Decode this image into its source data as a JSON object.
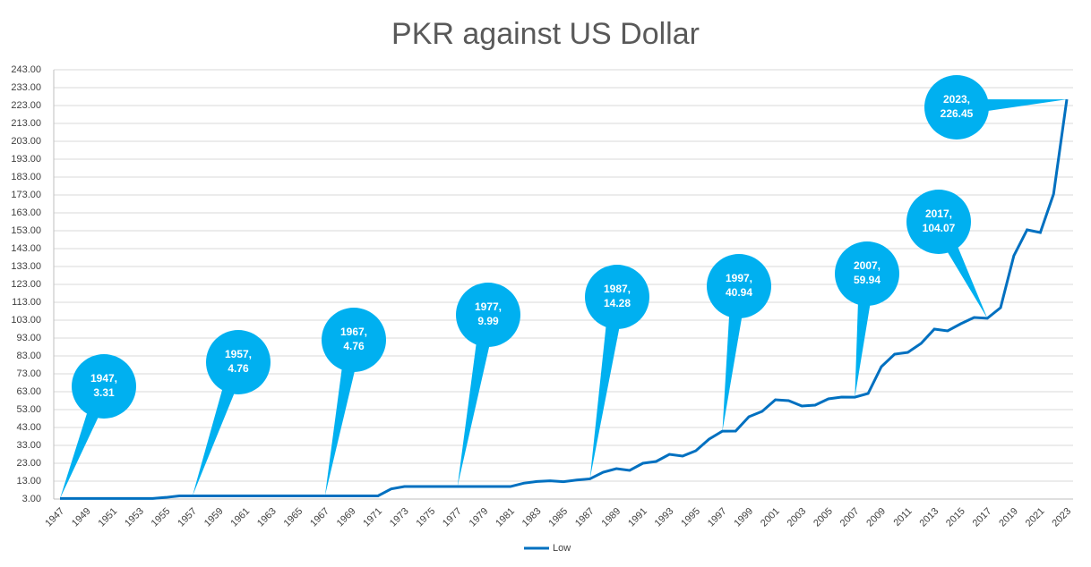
{
  "chart_data": {
    "type": "line",
    "title": "PKR against US Dollar",
    "categories": [
      "1947",
      null,
      "1949",
      null,
      "1951",
      null,
      "1953",
      null,
      "1955",
      null,
      "1957",
      null,
      "1959",
      null,
      "1961",
      null,
      "1963",
      null,
      "1965",
      null,
      "1967",
      null,
      "1969",
      null,
      "1971",
      null,
      "1973",
      null,
      "1975",
      null,
      "1977",
      null,
      "1979",
      null,
      "1981",
      null,
      "1983",
      null,
      "1985",
      null,
      "1987",
      null,
      "1989",
      null,
      "1991",
      null,
      "1993",
      null,
      "1995",
      null,
      "1997",
      null,
      "1999",
      null,
      "2001",
      null,
      "2003",
      null,
      "2005",
      null,
      "2007",
      null,
      "2009",
      null,
      "2011",
      null,
      "2013",
      null,
      "2015",
      null,
      "2017",
      null,
      "2019",
      null,
      "2021",
      null,
      "2023"
    ],
    "series": [
      {
        "name": "Low",
        "color": "#0070c0",
        "values": [
          3.31,
          3.31,
          3.31,
          3.31,
          3.31,
          3.31,
          3.31,
          3.31,
          3.91,
          4.76,
          4.76,
          4.76,
          4.76,
          4.76,
          4.76,
          4.76,
          4.76,
          4.76,
          4.76,
          4.76,
          4.76,
          4.76,
          4.76,
          4.76,
          4.76,
          8.68,
          9.99,
          9.99,
          9.99,
          9.99,
          9.99,
          9.99,
          9.99,
          9.99,
          9.99,
          11.85,
          12.8,
          13.2,
          12.7,
          13.6,
          14.28,
          18,
          20,
          19,
          23,
          24,
          28,
          27,
          30,
          36.5,
          40.94,
          41,
          49,
          52,
          58.5,
          58,
          55,
          55.5,
          59,
          60,
          59.94,
          62,
          77,
          84,
          85,
          90,
          98,
          97,
          101,
          104.5,
          104.07,
          110,
          139,
          153.5,
          152,
          173.5,
          226.45
        ],
        "value_labels": [
          "1947, 3.31",
          null,
          null,
          null,
          null,
          null,
          null,
          null,
          null,
          null,
          "1957, 4.76",
          null,
          null,
          null,
          null,
          null,
          null,
          null,
          null,
          null,
          "1967, 4.76",
          null,
          null,
          null,
          null,
          null,
          null,
          null,
          null,
          null,
          "1977, 9.99",
          null,
          null,
          null,
          null,
          null,
          null,
          null,
          null,
          null,
          "1987, 14.28",
          null,
          null,
          null,
          null,
          null,
          null,
          null,
          null,
          null,
          "1997, 40.94",
          null,
          null,
          null,
          null,
          null,
          null,
          null,
          null,
          null,
          "2007, 59.94",
          null,
          null,
          null,
          null,
          null,
          null,
          null,
          null,
          null,
          "2017, 104.07",
          null,
          null,
          null,
          null,
          null,
          "2023, 226.45"
        ],
        "label_color": "#00b0f0"
      }
    ],
    "ylim": [
      3,
      243
    ],
    "yticks": [
      {
        "value": 3,
        "label": "3.00"
      },
      {
        "value": 13,
        "label": "13.00"
      },
      {
        "value": 23,
        "label": "23.00"
      },
      {
        "value": 33,
        "label": "33.00"
      },
      {
        "value": 43,
        "label": "43.00"
      },
      {
        "value": 53,
        "label": "53.00"
      },
      {
        "value": 63,
        "label": "63.00"
      },
      {
        "value": 73,
        "label": "73.00"
      },
      {
        "value": 83,
        "label": "83.00"
      },
      {
        "value": 93,
        "label": "93.00"
      },
      {
        "value": 103,
        "label": "103.00"
      },
      {
        "value": 113,
        "label": "113.00"
      },
      {
        "value": 123,
        "label": "123.00"
      },
      {
        "value": 133,
        "label": "133.00"
      },
      {
        "value": 143,
        "label": "143.00"
      },
      {
        "value": 153,
        "label": "153.00"
      },
      {
        "value": 163,
        "label": "163.00"
      },
      {
        "value": 173,
        "label": "173.00"
      },
      {
        "value": 183,
        "label": "183.00"
      },
      {
        "value": 193,
        "label": "193.00"
      },
      {
        "value": 203,
        "label": "203.00"
      },
      {
        "value": 213,
        "label": "213.00"
      },
      {
        "value": 223,
        "label": "223.00"
      },
      {
        "value": 233,
        "label": "233.00"
      },
      {
        "value": 243,
        "label": "243.00"
      }
    ],
    "grid": true,
    "legend": "bottom"
  }
}
